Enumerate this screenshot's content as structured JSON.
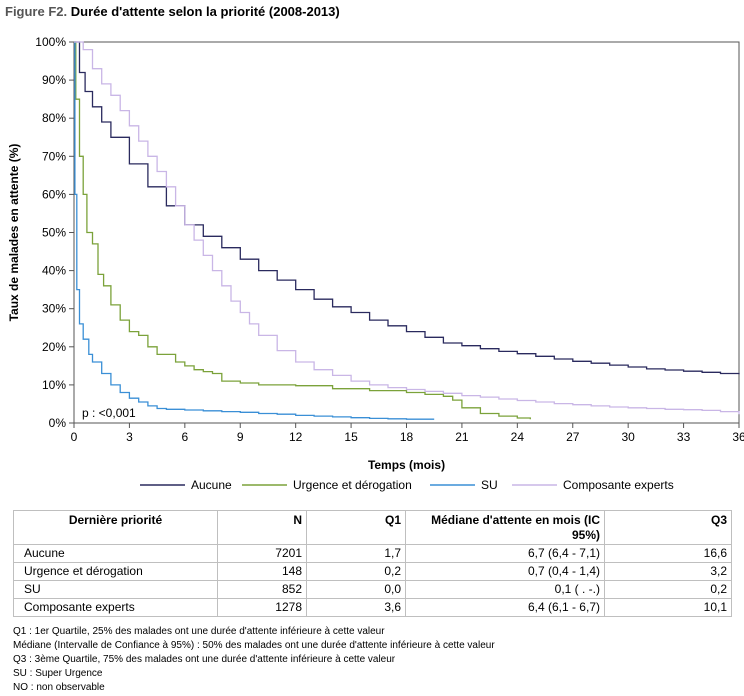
{
  "figure": {
    "prefix": "Figure F2.",
    "title": "Durée d'attente selon la priorité (2008-2013)"
  },
  "chart_data": {
    "type": "line",
    "xlabel": "Temps (mois)",
    "ylabel": "Taux de malades en attente (%)",
    "xlim": [
      0,
      36
    ],
    "ylim": [
      0,
      100
    ],
    "x_ticks": [
      "0",
      "3",
      "6",
      "9",
      "12",
      "15",
      "18",
      "21",
      "24",
      "27",
      "30",
      "33",
      "36"
    ],
    "y_ticks": [
      "0%",
      "10%",
      "20%",
      "30%",
      "40%",
      "50%",
      "60%",
      "70%",
      "80%",
      "90%",
      "100%"
    ],
    "annotation": "p : <0,001",
    "grid": false,
    "legend_position": "bottom",
    "series": [
      {
        "name": "Aucune",
        "color": "#2a2a5e",
        "x": [
          0,
          0.3,
          0.6,
          1,
          1.5,
          2,
          3,
          4,
          5,
          6,
          7,
          8,
          9,
          10,
          11,
          12,
          13,
          14,
          15,
          16,
          17,
          18,
          19,
          20,
          21,
          22,
          23,
          24,
          25,
          26,
          27,
          28,
          29,
          30,
          31,
          32,
          33,
          34,
          35,
          36
        ],
        "y": [
          100,
          92,
          87,
          83,
          79,
          75,
          68,
          62,
          57,
          52,
          49,
          46,
          43,
          40,
          37.5,
          35,
          32.5,
          30.5,
          29,
          27,
          25.5,
          24,
          22.5,
          21,
          20.3,
          19.5,
          18.8,
          18.2,
          17.5,
          16.8,
          16.2,
          15.7,
          15.2,
          14.7,
          14.2,
          13.9,
          13.6,
          13.3,
          13,
          12.8
        ]
      },
      {
        "name": "Urgence et dérogation",
        "color": "#7ba23a",
        "x": [
          0,
          0.1,
          0.3,
          0.5,
          0.7,
          1,
          1.3,
          1.6,
          2,
          2.5,
          3,
          3.5,
          4,
          4.5,
          5,
          5.5,
          6,
          6.5,
          7,
          7.5,
          8,
          9,
          10,
          11,
          12,
          14,
          16,
          18,
          19,
          20,
          20.5,
          21,
          22,
          23,
          24,
          24.7
        ],
        "y": [
          100,
          85,
          70,
          60,
          50,
          47,
          39,
          36,
          31,
          27,
          24,
          23,
          20,
          18,
          18,
          16,
          15,
          14,
          13.5,
          13,
          11,
          10.5,
          10,
          10,
          9.8,
          9,
          8.5,
          8,
          7.5,
          7,
          6,
          4,
          2.5,
          1.8,
          1.3,
          1
        ]
      },
      {
        "name": "SU",
        "color": "#3a8fd6",
        "x": [
          0,
          0.05,
          0.15,
          0.3,
          0.5,
          0.8,
          1,
          1.5,
          2,
          2.5,
          3,
          3.5,
          4,
          4.5,
          5,
          6,
          7,
          8,
          9,
          10,
          11,
          12,
          13,
          14,
          15,
          16,
          17,
          18,
          19,
          19.5
        ],
        "y": [
          100,
          60,
          35,
          26,
          22,
          18,
          16,
          13,
          10,
          8,
          6.5,
          5.5,
          4.5,
          3.8,
          3.6,
          3.4,
          3.2,
          3,
          2.8,
          2.5,
          2.3,
          2,
          1.8,
          1.6,
          1.4,
          1.2,
          1.1,
          1,
          1,
          1
        ]
      },
      {
        "name": "Composante experts",
        "color": "#c9b6e6",
        "x": [
          0,
          0.5,
          1,
          1.5,
          2,
          2.5,
          3,
          3.5,
          4,
          4.5,
          5,
          5.5,
          6,
          6.5,
          7,
          7.5,
          8,
          8.5,
          9,
          9.5,
          10,
          11,
          12,
          13,
          14,
          15,
          16,
          17,
          18,
          19,
          20,
          21,
          22,
          23,
          24,
          25,
          26,
          27,
          28,
          29,
          30,
          31,
          32,
          33,
          34,
          35,
          36
        ],
        "y": [
          100,
          98,
          93,
          89,
          86,
          82,
          78,
          74,
          70,
          66,
          62,
          57,
          52,
          48,
          44,
          40,
          36,
          32,
          29,
          26,
          23,
          19,
          16,
          14,
          12.5,
          11,
          10,
          9.3,
          8.8,
          8.3,
          7.8,
          7.2,
          6.8,
          6.3,
          5.9,
          5.5,
          5.1,
          4.8,
          4.5,
          4.2,
          4,
          3.8,
          3.6,
          3.5,
          3.3,
          3,
          2.3
        ]
      }
    ]
  },
  "table": {
    "headers": [
      "Dernière priorité",
      "N",
      "Q1",
      "Médiane d'attente en mois (IC 95%)",
      "Q3"
    ],
    "rows": [
      [
        "Aucune",
        "7201",
        "1,7",
        "6,7 (6,4 - 7,1)",
        "16,6"
      ],
      [
        "Urgence et dérogation",
        "148",
        "0,2",
        "0,7 (0,4 - 1,4)",
        "3,2"
      ],
      [
        "SU",
        "852",
        "0,0",
        "0,1 ( . -.)",
        "0,2"
      ],
      [
        "Composante experts",
        "1278",
        "3,6",
        "6,4 (6,1 - 6,7)",
        "10,1"
      ]
    ]
  },
  "notes": [
    "Q1 : 1er Quartile, 25% des malades ont une durée d'attente inférieure à cette valeur",
    "Médiane (Intervalle de Confiance à 95%) : 50% des malades ont une durée d'attente inférieure à cette valeur",
    "Q3 : 3ème Quartile, 75% des malades ont une durée d'attente inférieure à cette valeur",
    "SU : Super Urgence",
    "NO : non observable"
  ]
}
